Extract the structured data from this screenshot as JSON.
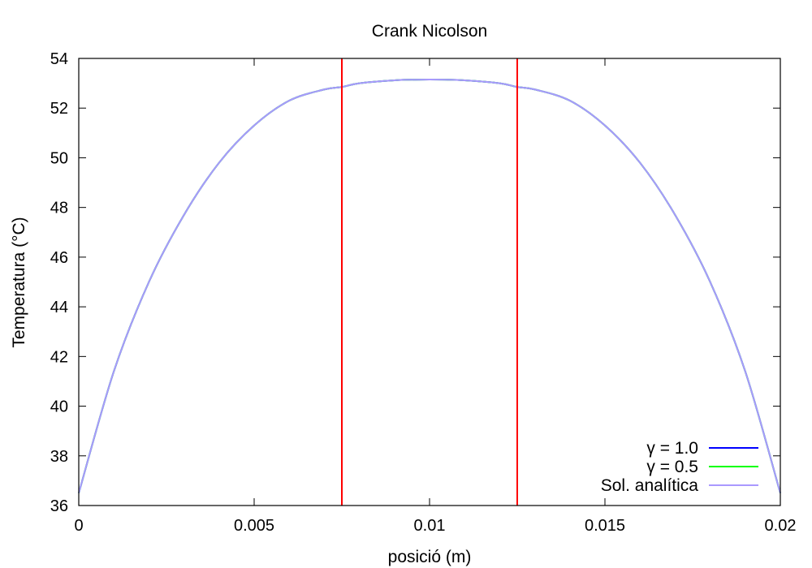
{
  "chart_data": {
    "type": "line",
    "title": "Crank Nicolson",
    "xlabel": "posició (m)",
    "ylabel": "Temperatura (°C)",
    "xlim": [
      0,
      0.02
    ],
    "ylim": [
      36,
      54
    ],
    "xticks": [
      0,
      0.005,
      0.01,
      0.015,
      0.02
    ],
    "xtick_labels": [
      "0",
      "0.005",
      "0.01",
      "0.015",
      "0.02"
    ],
    "yticks": [
      36,
      38,
      40,
      42,
      44,
      46,
      48,
      50,
      52,
      54
    ],
    "ytick_labels": [
      "36",
      "38",
      "40",
      "42",
      "44",
      "46",
      "48",
      "50",
      "52",
      "54"
    ],
    "grid": false,
    "legend_position": "bottom-right",
    "x": [
      0,
      0.001,
      0.002,
      0.003,
      0.004,
      0.005,
      0.006,
      0.007,
      0.0075,
      0.008,
      0.009,
      0.01,
      0.011,
      0.012,
      0.0125,
      0.013,
      0.014,
      0.015,
      0.016,
      0.017,
      0.018,
      0.019,
      0.02
    ],
    "series": [
      {
        "name": "γ = 1.0",
        "color": "#0000ff",
        "values": [
          36.5,
          41.4,
          45.0,
          47.7,
          49.8,
          51.3,
          52.3,
          52.75,
          52.85,
          53.0,
          53.12,
          53.15,
          53.12,
          53.0,
          52.85,
          52.75,
          52.3,
          51.3,
          49.8,
          47.7,
          45.0,
          41.4,
          36.5
        ]
      },
      {
        "name": "γ = 0.5",
        "color": "#00ff00",
        "values": [
          36.5,
          41.4,
          45.0,
          47.7,
          49.8,
          51.3,
          52.3,
          52.75,
          52.85,
          53.0,
          53.12,
          53.15,
          53.12,
          53.0,
          52.85,
          52.75,
          52.3,
          51.3,
          49.8,
          47.7,
          45.0,
          41.4,
          36.5
        ]
      },
      {
        "name": "Sol. analítica",
        "color": "#aa99ff",
        "values": [
          36.5,
          41.4,
          45.0,
          47.7,
          49.8,
          51.3,
          52.3,
          52.75,
          52.85,
          53.0,
          53.12,
          53.15,
          53.12,
          53.0,
          52.85,
          52.75,
          52.3,
          51.3,
          49.8,
          47.7,
          45.0,
          41.4,
          36.5
        ]
      }
    ],
    "vertical_lines": [
      {
        "x": 0.0075,
        "color": "#ff0000"
      },
      {
        "x": 0.0125,
        "color": "#ff0000"
      }
    ]
  }
}
